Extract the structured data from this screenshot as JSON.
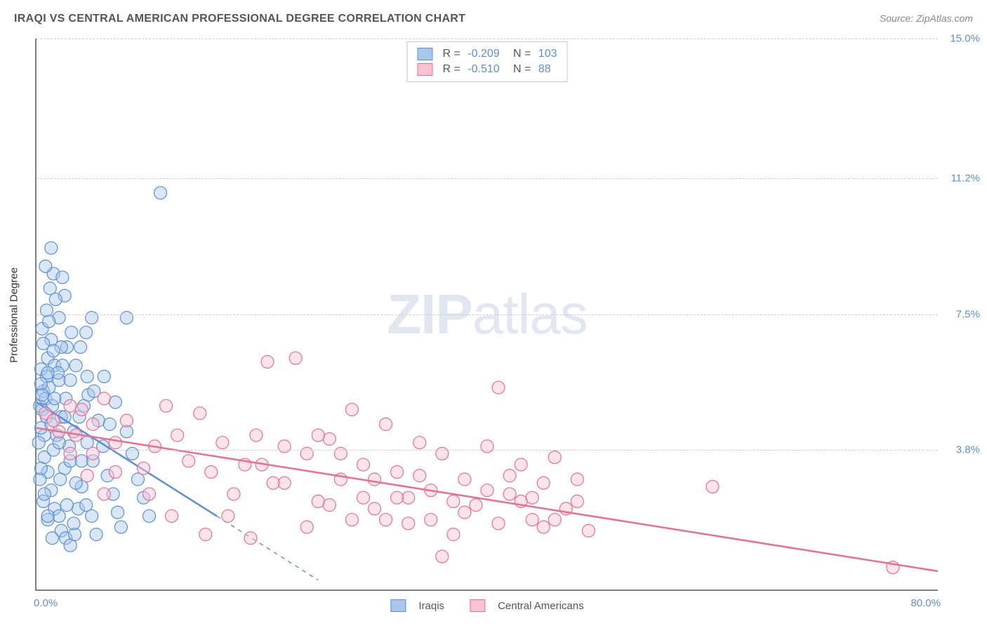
{
  "header": {
    "title": "IRAQI VS CENTRAL AMERICAN PROFESSIONAL DEGREE CORRELATION CHART",
    "source_prefix": "Source: ",
    "source_name": "ZipAtlas.com"
  },
  "watermark": {
    "bold": "ZIP",
    "light": "atlas"
  },
  "chart": {
    "type": "scatter",
    "ylabel": "Professional Degree",
    "xlim": [
      0,
      80
    ],
    "ylim": [
      0,
      15
    ],
    "xtick_labels": {
      "min": "0.0%",
      "max": "80.0%"
    },
    "yticks": [
      {
        "v": 3.8,
        "label": "3.8%"
      },
      {
        "v": 7.5,
        "label": "7.5%"
      },
      {
        "v": 11.2,
        "label": "11.2%"
      },
      {
        "v": 15.0,
        "label": "15.0%"
      }
    ],
    "grid_color": "#cccccc",
    "axis_color": "#808080",
    "background_color": "#ffffff",
    "marker_radius": 9,
    "marker_opacity": 0.45,
    "series": [
      {
        "name": "Iraqis",
        "color_fill": "#a9c7ec",
        "color_stroke": "#5b8fd6",
        "R": "-0.209",
        "N": "103",
        "trend": {
          "x1": 0,
          "y1": 5.1,
          "x2": 16,
          "y2": 2.0,
          "width": 2.5,
          "extend_to_x": 25
        },
        "points": [
          [
            0.3,
            5.0
          ],
          [
            0.5,
            4.9
          ],
          [
            0.6,
            5.4
          ],
          [
            0.8,
            5.2
          ],
          [
            0.4,
            6.0
          ],
          [
            0.9,
            5.8
          ],
          [
            1.1,
            5.5
          ],
          [
            0.7,
            4.2
          ],
          [
            1.4,
            5.0
          ],
          [
            1.0,
            6.3
          ],
          [
            1.3,
            6.8
          ],
          [
            1.6,
            6.1
          ],
          [
            0.5,
            7.1
          ],
          [
            0.9,
            7.6
          ],
          [
            1.2,
            8.2
          ],
          [
            1.5,
            8.6
          ],
          [
            0.4,
            4.4
          ],
          [
            0.7,
            3.6
          ],
          [
            1.0,
            3.2
          ],
          [
            1.3,
            2.7
          ],
          [
            1.6,
            2.2
          ],
          [
            2.0,
            2.0
          ],
          [
            2.2,
            1.6
          ],
          [
            2.6,
            1.4
          ],
          [
            3.0,
            1.2
          ],
          [
            3.4,
            1.5
          ],
          [
            3.7,
            2.2
          ],
          [
            2.5,
            3.3
          ],
          [
            2.9,
            3.9
          ],
          [
            3.3,
            4.3
          ],
          [
            3.8,
            4.7
          ],
          [
            4.2,
            5.0
          ],
          [
            4.6,
            5.3
          ],
          [
            5.1,
            5.4
          ],
          [
            5.5,
            4.6
          ],
          [
            5.9,
            3.9
          ],
          [
            6.3,
            3.1
          ],
          [
            6.8,
            2.6
          ],
          [
            7.2,
            2.1
          ],
          [
            7.5,
            1.7
          ],
          [
            2.0,
            5.7
          ],
          [
            2.3,
            6.1
          ],
          [
            2.7,
            6.6
          ],
          [
            3.1,
            7.0
          ],
          [
            0.3,
            3.0
          ],
          [
            0.6,
            2.4
          ],
          [
            1.0,
            1.9
          ],
          [
            1.4,
            1.4
          ],
          [
            4.0,
            2.8
          ],
          [
            4.4,
            2.3
          ],
          [
            4.9,
            2.0
          ],
          [
            5.3,
            1.5
          ],
          [
            1.8,
            4.2
          ],
          [
            2.2,
            4.7
          ],
          [
            2.6,
            5.2
          ],
          [
            3.0,
            5.7
          ],
          [
            3.5,
            6.1
          ],
          [
            3.9,
            6.6
          ],
          [
            4.4,
            7.0
          ],
          [
            4.9,
            7.4
          ],
          [
            2.0,
            7.4
          ],
          [
            2.5,
            8.0
          ],
          [
            9.0,
            3.0
          ],
          [
            9.5,
            2.5
          ],
          [
            10.0,
            2.0
          ],
          [
            8.0,
            4.3
          ],
          [
            8.5,
            3.7
          ],
          [
            7.0,
            5.1
          ],
          [
            6.5,
            4.5
          ],
          [
            6.0,
            5.8
          ],
          [
            5.0,
            3.5
          ],
          [
            4.5,
            4.0
          ],
          [
            0.8,
            8.8
          ],
          [
            1.3,
            9.3
          ],
          [
            0.4,
            5.6
          ],
          [
            0.9,
            4.7
          ],
          [
            1.5,
            3.8
          ],
          [
            2.1,
            3.0
          ],
          [
            2.7,
            2.3
          ],
          [
            3.3,
            1.8
          ],
          [
            0.6,
            6.7
          ],
          [
            1.1,
            7.3
          ],
          [
            1.7,
            7.9
          ],
          [
            2.3,
            8.5
          ],
          [
            11.0,
            10.8
          ],
          [
            8.0,
            7.4
          ],
          [
            0.2,
            4.0
          ],
          [
            0.4,
            3.3
          ],
          [
            0.7,
            2.6
          ],
          [
            1.0,
            2.0
          ],
          [
            1.3,
            4.5
          ],
          [
            1.6,
            5.2
          ],
          [
            1.9,
            5.9
          ],
          [
            2.2,
            6.6
          ],
          [
            0.5,
            5.3
          ],
          [
            1.0,
            5.9
          ],
          [
            1.5,
            6.5
          ],
          [
            2.0,
            4.0
          ],
          [
            2.5,
            4.7
          ],
          [
            3.0,
            3.5
          ],
          [
            3.5,
            2.9
          ],
          [
            4.0,
            3.5
          ],
          [
            4.5,
            5.8
          ]
        ]
      },
      {
        "name": "Central Americans",
        "color_fill": "#f6c3d0",
        "color_stroke": "#ec6e8e",
        "R": "-0.510",
        "N": "88",
        "trend": {
          "x1": 0,
          "y1": 4.4,
          "x2": 80,
          "y2": 0.5,
          "width": 2.5
        },
        "points": [
          [
            0.8,
            4.8
          ],
          [
            1.5,
            4.6
          ],
          [
            2.0,
            4.3
          ],
          [
            3.0,
            5.0
          ],
          [
            3.5,
            4.2
          ],
          [
            4.0,
            4.9
          ],
          [
            5.0,
            4.5
          ],
          [
            6.0,
            5.2
          ],
          [
            7.0,
            4.0
          ],
          [
            8.0,
            4.6
          ],
          [
            9.5,
            3.3
          ],
          [
            10.5,
            3.9
          ],
          [
            11.5,
            5.0
          ],
          [
            12.5,
            4.2
          ],
          [
            13.5,
            3.5
          ],
          [
            14.5,
            4.8
          ],
          [
            15.5,
            3.2
          ],
          [
            16.5,
            4.0
          ],
          [
            17.5,
            2.6
          ],
          [
            18.5,
            3.4
          ],
          [
            19.5,
            4.2
          ],
          [
            20.5,
            6.2
          ],
          [
            22.0,
            2.9
          ],
          [
            23.0,
            6.3
          ],
          [
            24.0,
            3.7
          ],
          [
            25.0,
            2.4
          ],
          [
            26.0,
            4.1
          ],
          [
            27.0,
            3.0
          ],
          [
            28.0,
            4.9
          ],
          [
            29.0,
            3.4
          ],
          [
            30.0,
            2.2
          ],
          [
            31.0,
            4.5
          ],
          [
            32.0,
            3.2
          ],
          [
            33.0,
            1.8
          ],
          [
            34.0,
            4.0
          ],
          [
            35.0,
            2.7
          ],
          [
            36.0,
            3.7
          ],
          [
            37.0,
            1.5
          ],
          [
            38.0,
            3.0
          ],
          [
            39.0,
            2.3
          ],
          [
            40.0,
            3.9
          ],
          [
            41.0,
            5.5
          ],
          [
            42.0,
            2.6
          ],
          [
            43.0,
            3.4
          ],
          [
            44.0,
            1.9
          ],
          [
            45.0,
            2.9
          ],
          [
            46.0,
            3.6
          ],
          [
            47.0,
            2.2
          ],
          [
            48.0,
            3.0
          ],
          [
            49.0,
            1.6
          ],
          [
            60.0,
            2.8
          ],
          [
            76.0,
            0.6
          ],
          [
            15.0,
            1.5
          ],
          [
            17.0,
            2.0
          ],
          [
            19.0,
            1.4
          ],
          [
            21.0,
            2.9
          ],
          [
            10.0,
            2.6
          ],
          [
            12.0,
            2.0
          ],
          [
            5.0,
            3.7
          ],
          [
            7.0,
            3.2
          ],
          [
            3.0,
            3.7
          ],
          [
            4.5,
            3.1
          ],
          [
            6.0,
            2.6
          ],
          [
            33.0,
            2.5
          ],
          [
            35.0,
            1.9
          ],
          [
            37.0,
            2.4
          ],
          [
            29.0,
            2.5
          ],
          [
            31.0,
            1.9
          ],
          [
            25.0,
            4.2
          ],
          [
            27.0,
            3.7
          ],
          [
            20.0,
            3.4
          ],
          [
            22.0,
            3.9
          ],
          [
            36.0,
            0.9
          ],
          [
            24.0,
            1.7
          ],
          [
            26.0,
            2.3
          ],
          [
            28.0,
            1.9
          ],
          [
            30.0,
            3.0
          ],
          [
            32.0,
            2.5
          ],
          [
            34.0,
            3.1
          ],
          [
            41.0,
            1.8
          ],
          [
            43.0,
            2.4
          ],
          [
            45.0,
            1.7
          ],
          [
            38.0,
            2.1
          ],
          [
            40.0,
            2.7
          ],
          [
            42.0,
            3.1
          ],
          [
            44.0,
            2.5
          ],
          [
            46.0,
            1.9
          ],
          [
            48.0,
            2.4
          ]
        ]
      }
    ]
  },
  "legend_bottom": {
    "items": [
      {
        "label": "Iraqis",
        "fill": "#a9c7ec",
        "stroke": "#5b8fd6"
      },
      {
        "label": "Central Americans",
        "fill": "#f6c3d0",
        "stroke": "#ec6e8e"
      }
    ]
  }
}
